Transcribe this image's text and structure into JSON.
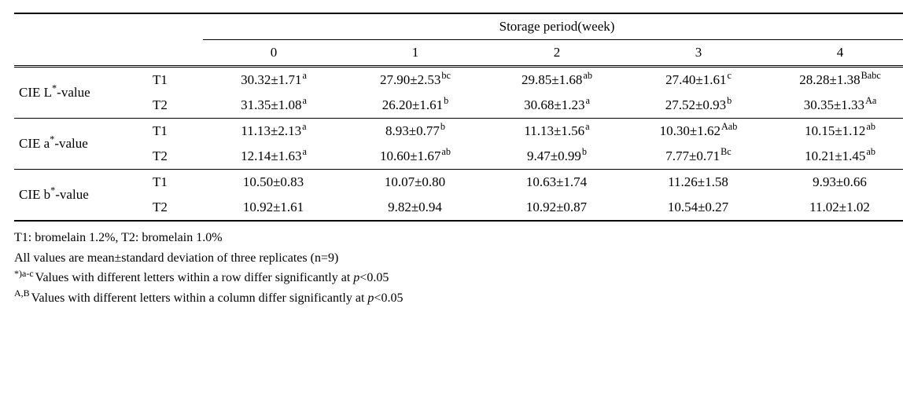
{
  "header": {
    "storage_label": "Storage period(week)",
    "weeks": [
      "0",
      "1",
      "2",
      "3",
      "4"
    ]
  },
  "params": [
    {
      "label_prefix": "CIE  L",
      "label_suffix": "-value"
    },
    {
      "label_prefix": "CIE  a",
      "label_suffix": "-value"
    },
    {
      "label_prefix": "CIE  b",
      "label_suffix": "-value"
    }
  ],
  "treatments": [
    "T1",
    "T2"
  ],
  "data": {
    "L": {
      "T1": [
        {
          "v": "30.32±1.71",
          "sup": "a"
        },
        {
          "v": "27.90±2.53",
          "sup": "bc"
        },
        {
          "v": "29.85±1.68",
          "sup": "ab"
        },
        {
          "v": "27.40±1.61",
          "sup": "c"
        },
        {
          "v": "28.28±1.38",
          "sup": "Babc"
        }
      ],
      "T2": [
        {
          "v": "31.35±1.08",
          "sup": "a"
        },
        {
          "v": "26.20±1.61",
          "sup": "b"
        },
        {
          "v": "30.68±1.23",
          "sup": "a"
        },
        {
          "v": "27.52±0.93",
          "sup": "b"
        },
        {
          "v": "30.35±1.33",
          "sup": "Aa"
        }
      ]
    },
    "a": {
      "T1": [
        {
          "v": "11.13±2.13",
          "sup": "a"
        },
        {
          "v": "8.93±0.77",
          "sup": "b"
        },
        {
          "v": "11.13±1.56",
          "sup": "a"
        },
        {
          "v": "10.30±1.62",
          "sup": "Aab"
        },
        {
          "v": "10.15±1.12",
          "sup": "ab"
        }
      ],
      "T2": [
        {
          "v": "12.14±1.63",
          "sup": "a"
        },
        {
          "v": "10.60±1.67",
          "sup": "ab"
        },
        {
          "v": "9.47±0.99",
          "sup": "b"
        },
        {
          "v": "7.77±0.71",
          "sup": "Bc"
        },
        {
          "v": "10.21±1.45",
          "sup": "ab"
        }
      ]
    },
    "b": {
      "T1": [
        {
          "v": "10.50±0.83",
          "sup": ""
        },
        {
          "v": "10.07±0.80",
          "sup": ""
        },
        {
          "v": "10.63±1.74",
          "sup": ""
        },
        {
          "v": "11.26±1.58",
          "sup": ""
        },
        {
          "v": "9.93±0.66",
          "sup": ""
        }
      ],
      "T2": [
        {
          "v": "10.92±1.61",
          "sup": ""
        },
        {
          "v": "9.82±0.94",
          "sup": ""
        },
        {
          "v": "10.92±0.87",
          "sup": ""
        },
        {
          "v": "10.54±0.27",
          "sup": ""
        },
        {
          "v": "11.02±1.02",
          "sup": ""
        }
      ]
    }
  },
  "notes": {
    "line1": "T1: bromelain 1.2%, T2: bromelain 1.0%",
    "line2": "All values are mean±standard deviation of three replicates (n=9)",
    "line3_pre": "*)a-c",
    "line3_text_a": "Values with different letters within a row differ significantly at ",
    "line3_p": "p",
    "line3_text_b": "<0.05",
    "line4_pre": "A,B",
    "line4_text_a": "Values with different letters within a column differ significantly at ",
    "line4_p": "p",
    "line4_text_b": "<0.05"
  }
}
